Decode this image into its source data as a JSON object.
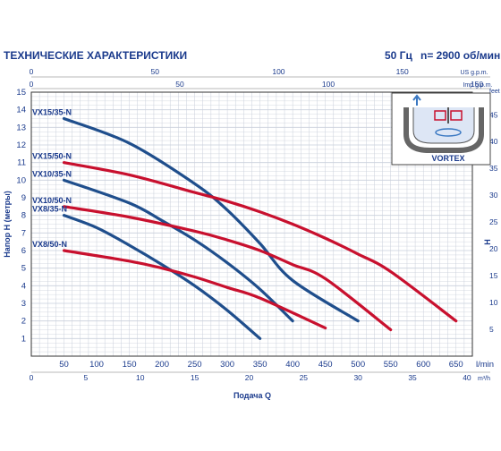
{
  "header": {
    "title": "ТЕХНИЧЕСКИЕ ХАРАКТЕРИСТИКИ",
    "frequency": "50 Гц",
    "speed": "n= 2900 об/мин"
  },
  "colors": {
    "blue": "#1f4e8c",
    "red": "#c8102e",
    "grid": "#c9cfdb",
    "text": "#1a3a8c"
  },
  "chart_data": {
    "type": "line",
    "xlabel": "Подача Q",
    "ylabel": "Напор H (метры)",
    "x_unit": "l/min",
    "xlim": [
      0,
      675
    ],
    "ylim": [
      0,
      15
    ],
    "x_ticks": [
      50,
      100,
      150,
      200,
      250,
      300,
      350,
      400,
      450,
      500,
      550,
      600,
      650
    ],
    "y_ticks": [
      1,
      2,
      3,
      4,
      5,
      6,
      7,
      8,
      9,
      10,
      11,
      12,
      13,
      14,
      15
    ],
    "secondary_axes": {
      "us_gpm": {
        "unit": "US g.p.m.",
        "ticks": [
          0,
          50,
          100,
          150
        ]
      },
      "imp_gpm": {
        "unit": "Imp g.p.m.",
        "ticks": [
          0,
          50,
          100,
          150
        ]
      },
      "m3h": {
        "unit": "m³/h",
        "ticks": [
          0,
          5,
          10,
          15,
          20,
          25,
          30,
          35,
          40
        ]
      },
      "feet": {
        "unit": "feet",
        "ticks": [
          5,
          10,
          15,
          20,
          25,
          30,
          35,
          40,
          45
        ]
      }
    },
    "series": [
      {
        "name": "VX15/35-N",
        "color": "blue",
        "x": [
          50,
          150,
          250,
          300,
          350,
          400,
          500
        ],
        "y": [
          13.5,
          12.1,
          9.8,
          8.3,
          6.4,
          4.3,
          2.0
        ]
      },
      {
        "name": "VX15/50-N",
        "color": "red",
        "x": [
          50,
          150,
          250,
          300,
          350,
          400,
          450,
          500,
          550,
          650
        ],
        "y": [
          11.0,
          10.3,
          9.3,
          8.8,
          8.2,
          7.5,
          6.7,
          5.8,
          4.8,
          2.0
        ]
      },
      {
        "name": "VX10/35-N",
        "color": "blue",
        "x": [
          50,
          150,
          200,
          250,
          300,
          350,
          400
        ],
        "y": [
          10.0,
          8.7,
          7.7,
          6.6,
          5.3,
          3.8,
          2.0
        ]
      },
      {
        "name": "VX10/50-N",
        "color": "red",
        "x": [
          50,
          150,
          250,
          300,
          350,
          400,
          450,
          550
        ],
        "y": [
          8.5,
          7.9,
          7.1,
          6.6,
          6.0,
          5.2,
          4.4,
          1.5
        ]
      },
      {
        "name": "VX8/35-N",
        "color": "blue",
        "x": [
          50,
          100,
          150,
          200,
          250,
          300,
          350
        ],
        "y": [
          8.0,
          7.3,
          6.3,
          5.2,
          4.0,
          2.6,
          1.0
        ]
      },
      {
        "name": "VX8/50-N",
        "color": "red",
        "x": [
          50,
          150,
          200,
          250,
          300,
          350,
          450
        ],
        "y": [
          6.0,
          5.4,
          5.0,
          4.5,
          3.9,
          3.3,
          1.6
        ]
      }
    ]
  },
  "inset": {
    "label": "VORTEX"
  }
}
